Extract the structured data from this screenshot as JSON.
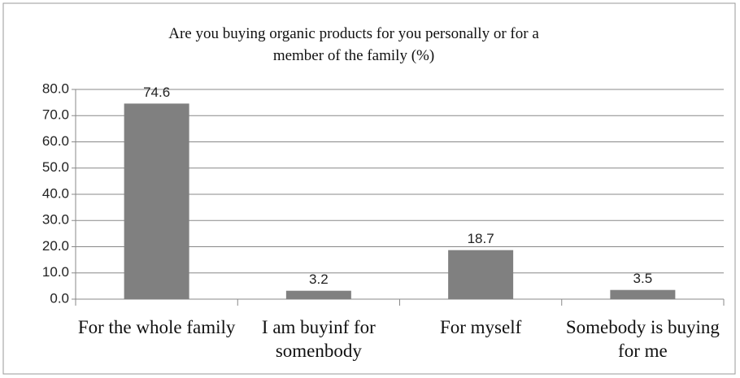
{
  "chart_data": {
    "type": "bar",
    "title": "Are you buying organic products for you personally or for a member of the family (%)",
    "categories": [
      "For the whole family",
      "I am buyinf for somenbody",
      "For myself",
      "Somebody is buying for me"
    ],
    "values": [
      74.6,
      3.2,
      18.7,
      3.5
    ],
    "color": "#808080",
    "ylim": [
      0,
      80
    ],
    "yticks": [
      {
        "value": 0,
        "label": "0.0"
      },
      {
        "value": 10,
        "label": "10.0"
      },
      {
        "value": 20,
        "label": "20.0"
      },
      {
        "value": 30,
        "label": "30.0"
      },
      {
        "value": 40,
        "label": "40.0"
      },
      {
        "value": 50,
        "label": "50.0"
      },
      {
        "value": 60,
        "label": "60.0"
      },
      {
        "value": 70,
        "label": "70.0"
      },
      {
        "value": 80,
        "label": "80.0"
      }
    ],
    "grid": true
  }
}
